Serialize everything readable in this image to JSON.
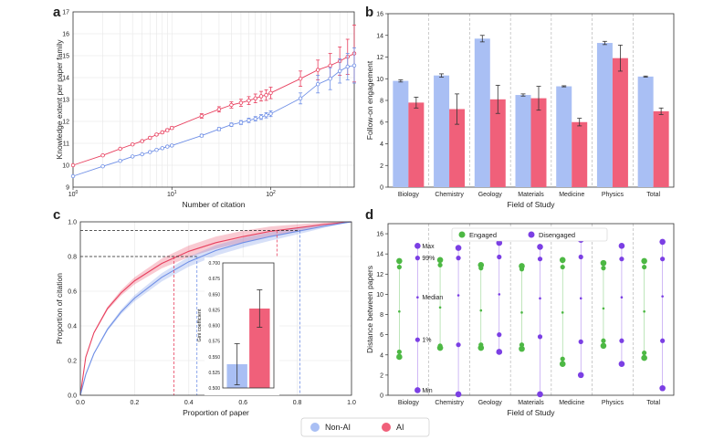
{
  "colors": {
    "ai": "#e8405f",
    "nonai": "#6f8fe6",
    "ai_bar": "#f0607a",
    "nonai_bar": "#a9bff4",
    "engaged": "#4db844",
    "disengaged": "#7b3fe4"
  },
  "legend": {
    "nonai": "Non-AI",
    "ai": "AI"
  },
  "chart_data": [
    {
      "panel": "a",
      "type": "line",
      "xscale": "log",
      "xlabel": "Number of citation",
      "ylabel": "Knowledge extent per paper family",
      "xlim": [
        1,
        700
      ],
      "ylim": [
        9,
        17
      ],
      "yticks": [
        "9",
        "10",
        "11",
        "12",
        "13",
        "14",
        "15",
        "16",
        "17"
      ],
      "xticks": [
        "10^0",
        "10^1",
        "10^2"
      ],
      "series": [
        {
          "name": "AI",
          "x": [
            1,
            2,
            3,
            4,
            5,
            6,
            7,
            8,
            9,
            10,
            20,
            30,
            40,
            50,
            60,
            70,
            80,
            90,
            100,
            200,
            300,
            400,
            500,
            600,
            700
          ],
          "values": [
            10.0,
            10.45,
            10.75,
            10.95,
            11.1,
            11.25,
            11.4,
            11.5,
            11.6,
            11.7,
            12.25,
            12.55,
            12.75,
            12.85,
            12.95,
            13.05,
            13.15,
            13.2,
            13.3,
            13.95,
            14.35,
            14.55,
            14.75,
            14.95,
            15.1
          ],
          "err": [
            0.03,
            0.03,
            0.03,
            0.04,
            0.04,
            0.05,
            0.05,
            0.05,
            0.06,
            0.06,
            0.1,
            0.12,
            0.14,
            0.16,
            0.18,
            0.2,
            0.22,
            0.24,
            0.26,
            0.35,
            0.45,
            0.55,
            0.65,
            0.8,
            1.3
          ]
        },
        {
          "name": "Non-AI",
          "x": [
            1,
            2,
            3,
            4,
            5,
            6,
            7,
            8,
            9,
            10,
            20,
            30,
            40,
            50,
            60,
            70,
            80,
            90,
            100,
            200,
            300,
            400,
            500,
            600,
            700
          ],
          "values": [
            9.5,
            9.95,
            10.2,
            10.4,
            10.5,
            10.6,
            10.7,
            10.78,
            10.85,
            10.9,
            11.35,
            11.65,
            11.85,
            11.95,
            12.05,
            12.12,
            12.2,
            12.28,
            12.35,
            13.05,
            13.7,
            13.95,
            14.3,
            14.5,
            14.55
          ],
          "err": [
            0.02,
            0.02,
            0.02,
            0.02,
            0.03,
            0.03,
            0.03,
            0.03,
            0.03,
            0.04,
            0.06,
            0.07,
            0.08,
            0.09,
            0.1,
            0.1,
            0.11,
            0.12,
            0.13,
            0.25,
            0.4,
            0.5,
            0.55,
            0.6,
            0.8
          ]
        }
      ]
    },
    {
      "panel": "b",
      "type": "bar",
      "xlabel": "Field of Study",
      "ylabel": "Follow-on engagement",
      "ylim": [
        0,
        16
      ],
      "yticks": [
        "0",
        "2",
        "4",
        "6",
        "8",
        "10",
        "12",
        "14",
        "16"
      ],
      "categories": [
        "Biology",
        "Chemistry",
        "Geology",
        "Materials",
        "Medicine",
        "Physics",
        "Total"
      ],
      "series": [
        {
          "name": "Non-AI",
          "values": [
            9.8,
            10.3,
            13.7,
            8.5,
            9.3,
            13.3,
            10.2
          ],
          "err": [
            0.1,
            0.15,
            0.3,
            0.1,
            0.05,
            0.15,
            0.05
          ]
        },
        {
          "name": "AI",
          "values": [
            7.8,
            7.2,
            8.1,
            8.2,
            6.0,
            11.9,
            7.0
          ],
          "err": [
            0.5,
            1.4,
            1.3,
            1.1,
            0.35,
            1.2,
            0.3
          ]
        }
      ]
    },
    {
      "panel": "c",
      "type": "line",
      "xlabel": "Proportion of paper",
      "ylabel": "Proportion of citation",
      "xlim": [
        0,
        1
      ],
      "ylim": [
        0,
        1
      ],
      "xticks": [
        "0.0",
        "0.2",
        "0.4",
        "0.6",
        "0.8",
        "1.0"
      ],
      "yticks": [
        "0.0",
        "0.2",
        "0.4",
        "0.6",
        "0.8",
        "1.0"
      ],
      "series": [
        {
          "name": "AI",
          "x": [
            0,
            0.02,
            0.05,
            0.1,
            0.15,
            0.2,
            0.3,
            0.4,
            0.5,
            0.6,
            0.7,
            0.8,
            0.9,
            1.0
          ],
          "values": [
            0,
            0.22,
            0.36,
            0.5,
            0.59,
            0.66,
            0.76,
            0.83,
            0.88,
            0.915,
            0.945,
            0.965,
            0.985,
            1.0
          ]
        },
        {
          "name": "Non-AI",
          "x": [
            0,
            0.02,
            0.05,
            0.1,
            0.15,
            0.2,
            0.3,
            0.4,
            0.5,
            0.6,
            0.7,
            0.8,
            0.9,
            1.0
          ],
          "values": [
            0,
            0.12,
            0.24,
            0.38,
            0.48,
            0.56,
            0.68,
            0.77,
            0.835,
            0.88,
            0.915,
            0.945,
            0.975,
            1.0
          ]
        }
      ],
      "reference_lines": {
        "ai_x": [
          0.345,
          0.725
        ],
        "nonai_x": [
          0.43,
          0.81
        ],
        "y": [
          0.8,
          0.95
        ]
      },
      "inset": {
        "ylabel": "Gini coefficient",
        "ylim": [
          0.5,
          0.7
        ],
        "yticks": [
          "0.500",
          "0.525",
          "0.550",
          "0.575",
          "0.600",
          "0.625",
          "0.650",
          "0.675",
          "0.700"
        ],
        "categories": [
          "Non-AI",
          "AI"
        ],
        "values": [
          0.538,
          0.627
        ],
        "err": [
          0.033,
          0.03
        ]
      }
    },
    {
      "panel": "d",
      "type": "scatter",
      "xlabel": "Field of Study",
      "ylabel": "Distance between papers",
      "ylim": [
        0,
        17
      ],
      "yticks": [
        "0",
        "2",
        "4",
        "6",
        "8",
        "10",
        "12",
        "14",
        "16"
      ],
      "categories": [
        "Biology",
        "Chemistry",
        "Geology",
        "Materials",
        "Medicine",
        "Physics",
        "Total"
      ],
      "legend": [
        "Engaged",
        "Disengaged"
      ],
      "annotations": [
        "Max",
        "99%",
        "Median",
        "1%",
        "Min"
      ],
      "series": [
        {
          "name": "Engaged",
          "min": [
            3.8,
            4.7,
            4.7,
            4.6,
            3.1,
            4.9,
            3.7
          ],
          "p1": [
            4.3,
            4.9,
            5.0,
            5.0,
            3.6,
            5.4,
            4.2
          ],
          "median": [
            8.3,
            8.7,
            8.4,
            8.2,
            8.2,
            8.6,
            8.3
          ],
          "p99": [
            12.7,
            12.9,
            12.6,
            12.5,
            12.7,
            12.6,
            12.7
          ],
          "max": [
            13.3,
            13.4,
            12.9,
            12.8,
            13.4,
            13.1,
            13.3
          ]
        },
        {
          "name": "Disengaged",
          "min": [
            0.5,
            0.1,
            4.3,
            0.1,
            2.0,
            3.1,
            0.7
          ],
          "p1": [
            5.5,
            5.0,
            6.0,
            5.8,
            5.3,
            5.4,
            5.4
          ],
          "median": [
            9.7,
            9.9,
            10.0,
            9.6,
            9.6,
            9.7,
            9.8
          ],
          "p99": [
            13.6,
            13.6,
            13.7,
            13.5,
            13.7,
            13.5,
            13.5
          ],
          "max": [
            14.8,
            14.6,
            15.1,
            14.7,
            15.4,
            14.8,
            15.2
          ]
        }
      ]
    }
  ],
  "panel_letters": {
    "a": "a",
    "b": "b",
    "c": "c",
    "d": "d"
  }
}
